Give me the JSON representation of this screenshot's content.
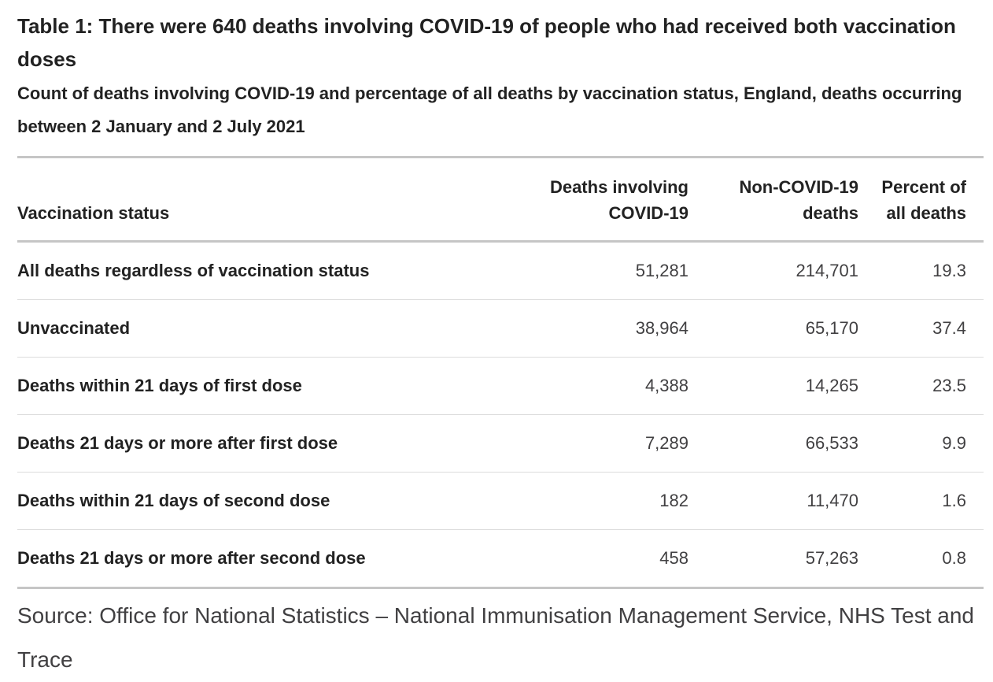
{
  "chart_data": {
    "type": "table",
    "title": "Table 1: There were 640 deaths involving COVID-19 of people who had received both vaccination doses",
    "subtitle": "Count of deaths involving COVID-19 and percentage of all deaths by vaccination status, England, deaths occurring between 2 January and 2 July 2021",
    "columns": [
      "Vaccination status",
      "Deaths involving COVID-19",
      "Non-COVID-19 deaths",
      "Percent of all deaths"
    ],
    "column_alignment": [
      "left",
      "right",
      "right",
      "right"
    ],
    "rows": [
      [
        "All deaths regardless of vaccination status",
        "51,281",
        "214,701",
        "19.3"
      ],
      [
        "Unvaccinated",
        "38,964",
        "65,170",
        "37.4"
      ],
      [
        "Deaths within 21 days of first dose",
        "4,388",
        "14,265",
        "23.5"
      ],
      [
        "Deaths 21 days or more after first dose",
        "7,289",
        "66,533",
        "9.9"
      ],
      [
        "Deaths within 21 days of second dose",
        "182",
        "11,470",
        "1.6"
      ],
      [
        "Deaths 21 days or more after second dose",
        "458",
        "57,263",
        "0.8"
      ]
    ],
    "source": "Source: Office for National Statistics – National Immunisation Management Service, NHS Test and Trace"
  },
  "colors": {
    "heading_text": "#222222",
    "numeric_text": "#414042",
    "border_heavy": "#c6c6c6",
    "border_light": "#dcdcdc",
    "background": "#ffffff"
  }
}
